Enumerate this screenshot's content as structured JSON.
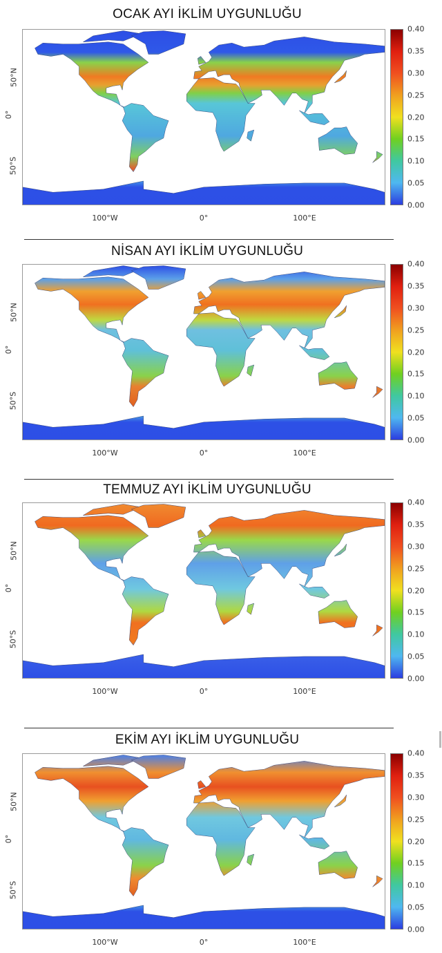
{
  "panels": [
    {
      "title": "OCAK AYI İKLİM UYGUNLUĞU",
      "bands": [
        [
          83,
          "#2d4fe6"
        ],
        [
          62,
          "#2f58e8"
        ],
        [
          52,
          "#8ad24a"
        ],
        [
          38,
          "#f07a22"
        ],
        [
          30,
          "#e8a030"
        ],
        [
          22,
          "#80d048"
        ],
        [
          12,
          "#58c6d8"
        ],
        [
          -20,
          "#4fa8e0"
        ],
        [
          -40,
          "#7fcf60"
        ],
        [
          -52,
          "#e06030"
        ],
        [
          -62,
          "#4aa8e8"
        ],
        [
          -70,
          "#2d50e6"
        ],
        [
          -90,
          "#2d4fe6"
        ]
      ]
    },
    {
      "title": "NİSAN AYI İKLİM UYGUNLUĞU",
      "bands": [
        [
          83,
          "#2d4fe6"
        ],
        [
          70,
          "#5ca0e8"
        ],
        [
          58,
          "#f0a030"
        ],
        [
          45,
          "#f07020"
        ],
        [
          30,
          "#c0d840"
        ],
        [
          20,
          "#6fc0e0"
        ],
        [
          0,
          "#5fc0d8"
        ],
        [
          -25,
          "#8ad24a"
        ],
        [
          -35,
          "#e88030"
        ],
        [
          -55,
          "#e06020"
        ],
        [
          -62,
          "#4fb0e0"
        ],
        [
          -70,
          "#2d50e6"
        ],
        [
          -90,
          "#2d4fe6"
        ]
      ]
    },
    {
      "title": "TEMMUZ AYI İKLİM UYGUNLUĞU",
      "bands": [
        [
          83,
          "#f08a30"
        ],
        [
          62,
          "#f06a20"
        ],
        [
          48,
          "#9ad84a"
        ],
        [
          25,
          "#5fa0e8"
        ],
        [
          0,
          "#6fc8e0"
        ],
        [
          -22,
          "#b0d840"
        ],
        [
          -33,
          "#f07020"
        ],
        [
          -52,
          "#f07a20"
        ],
        [
          -64,
          "#3a60e8"
        ],
        [
          -90,
          "#2d4fe6"
        ]
      ]
    },
    {
      "title": "EKİM AYI İKLİM UYGUNLUĞU",
      "bands": [
        [
          83,
          "#4a80e8"
        ],
        [
          66,
          "#f09030"
        ],
        [
          52,
          "#e85020"
        ],
        [
          38,
          "#f0a030"
        ],
        [
          22,
          "#70c8e0"
        ],
        [
          0,
          "#60b8e0"
        ],
        [
          -25,
          "#8ad24a"
        ],
        [
          -38,
          "#f08a30"
        ],
        [
          -55,
          "#e06020"
        ],
        [
          -62,
          "#4aa8e8"
        ],
        [
          -70,
          "#2d50e6"
        ],
        [
          -90,
          "#2d4fe6"
        ]
      ]
    }
  ],
  "colorbar": {
    "ticks": [
      "0.40",
      "0.35",
      "0.30",
      "0.25",
      "0.20",
      "0.15",
      "0.10",
      "0.05",
      "0.00"
    ],
    "colors": [
      "#8b0000",
      "#e02010",
      "#f05020",
      "#f0a020",
      "#f0e020",
      "#70d020",
      "#40c8a0",
      "#4fb8f0",
      "#2b3de0"
    ]
  },
  "x_axis": [
    "100°W",
    "0°",
    "100°E"
  ],
  "y_axis": [
    "50°N",
    "0°",
    "50°S"
  ]
}
